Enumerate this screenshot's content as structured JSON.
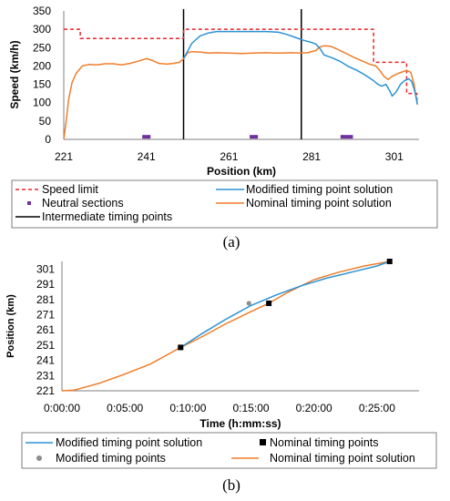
{
  "chart_data": [
    {
      "type": "line",
      "panel_label": "(a)",
      "title": "",
      "xlabel": "Position (km)",
      "ylabel": "Speed (km/h)",
      "xlim": [
        221,
        307
      ],
      "ylim": [
        0,
        350
      ],
      "x_ticks": [
        221,
        241,
        261,
        281,
        301
      ],
      "y_ticks": [
        0,
        50,
        100,
        150,
        200,
        250,
        300,
        350
      ],
      "grid": false,
      "legend": {
        "placement": "bottom",
        "entries": [
          "Speed limit",
          "Modified  timing point solution",
          "Neutral sections",
          "Nominal  timing point solution",
          "Intermediate timing points"
        ]
      },
      "series": [
        {
          "name": "Speed limit",
          "color": "#e8262a",
          "style": "dashed",
          "points": [
            [
              221,
              300
            ],
            [
              225,
              300
            ],
            [
              225,
              275
            ],
            [
              250,
              275
            ],
            [
              250,
              300
            ],
            [
              296,
              300
            ],
            [
              296,
              210
            ],
            [
              304,
              210
            ],
            [
              304,
              125
            ],
            [
              306.5,
              125
            ],
            [
              306.5,
              100
            ]
          ]
        },
        {
          "name": "Nominal  timing point solution",
          "color": "#f07d2a",
          "points": [
            [
              221,
              0
            ],
            [
              221.6,
              50
            ],
            [
              222.2,
              110
            ],
            [
              223,
              155
            ],
            [
              224,
              180
            ],
            [
              225.5,
              200
            ],
            [
              227,
              204
            ],
            [
              229,
              203
            ],
            [
              231,
              206
            ],
            [
              233,
              206
            ],
            [
              235,
              203
            ],
            [
              237,
              207
            ],
            [
              239,
              213
            ],
            [
              241,
              220
            ],
            [
              242.5,
              215
            ],
            [
              244,
              207
            ],
            [
              246,
              205
            ],
            [
              247.5,
              207
            ],
            [
              249,
              210
            ],
            [
              250,
              220
            ],
            [
              251,
              236
            ],
            [
              252,
              239
            ],
            [
              254,
              238
            ],
            [
              256,
              235
            ],
            [
              258,
              236
            ],
            [
              261,
              235
            ],
            [
              264,
              234
            ],
            [
              267,
              235
            ],
            [
              270,
              236
            ],
            [
              272,
              235
            ],
            [
              274,
              235
            ],
            [
              276,
              236
            ],
            [
              278,
              235
            ],
            [
              280,
              236
            ],
            [
              282,
              242
            ],
            [
              283,
              252
            ],
            [
              284,
              255
            ],
            [
              285.5,
              254
            ],
            [
              287,
              247
            ],
            [
              289,
              236
            ],
            [
              291,
              225
            ],
            [
              293,
              215
            ],
            [
              295,
              205
            ],
            [
              296.5,
              200
            ],
            [
              297.5,
              188
            ],
            [
              298.5,
              172
            ],
            [
              299.5,
              163
            ],
            [
              300.5,
              172
            ],
            [
              302,
              180
            ],
            [
              304,
              188
            ],
            [
              305,
              183
            ],
            [
              305.8,
              150
            ],
            [
              306.2,
              120
            ],
            [
              306.6,
              95
            ]
          ]
        },
        {
          "name": "Modified  timing point solution",
          "color": "#2a93d5",
          "points": [
            [
              250,
              220
            ],
            [
              251,
              240
            ],
            [
              252,
              262
            ],
            [
              254,
              282
            ],
            [
              256,
              290
            ],
            [
              258,
              294
            ],
            [
              262,
              294
            ],
            [
              266,
              294
            ],
            [
              270,
              294
            ],
            [
              273,
              292
            ],
            [
              275,
              286
            ],
            [
              277,
              278
            ],
            [
              279,
              270
            ],
            [
              281,
              264
            ],
            [
              282,
              260
            ],
            [
              283,
              248
            ],
            [
              284,
              230
            ],
            [
              286,
              222
            ],
            [
              288,
              212
            ],
            [
              290,
              198
            ],
            [
              292,
              188
            ],
            [
              294,
              175
            ],
            [
              296,
              160
            ],
            [
              297,
              150
            ],
            [
              298,
              145
            ],
            [
              299,
              150
            ],
            [
              300,
              130
            ],
            [
              300.5,
              118
            ],
            [
              301.5,
              130
            ],
            [
              302.5,
              150
            ],
            [
              303.5,
              160
            ],
            [
              304.5,
              165
            ],
            [
              305.2,
              158
            ],
            [
              305.8,
              138
            ],
            [
              306.3,
              115
            ],
            [
              306.6,
              95
            ]
          ]
        }
      ],
      "neutral_sections": [
        {
          "x_start": 240,
          "x_end": 242,
          "y": 7
        },
        {
          "x_start": 266,
          "x_end": 268,
          "y": 7
        },
        {
          "x_start": 288,
          "x_end": 291,
          "y": 7
        }
      ],
      "intermediate_timing_points": [
        250,
        278.5
      ]
    },
    {
      "type": "line",
      "panel_label": "(b)",
      "title": "",
      "xlabel": "Time (h:mm:ss)",
      "ylabel": "Position (km)",
      "xlim": [
        "0:00:00",
        "0:28:20"
      ],
      "ylim": [
        221,
        306
      ],
      "x_ticks": [
        "0:00:00",
        "0:05:00",
        "0:10:00",
        "0:15:00",
        "0:20:00",
        "0:25:00"
      ],
      "y_ticks": [
        221,
        231,
        241,
        251,
        261,
        271,
        281,
        291,
        301
      ],
      "grid": false,
      "legend": {
        "placement": "bottom",
        "entries": [
          "Modified timing point solution",
          "Nominal timing points",
          "Modified timing points",
          "Nominal timing point solution"
        ]
      },
      "series": [
        {
          "name": "Nominal timing point solution",
          "color": "#f07d2a",
          "points": [
            [
              "0:00:00",
              221
            ],
            [
              "0:01:00",
              221.5
            ],
            [
              "0:03:00",
              226
            ],
            [
              "0:05:00",
              232
            ],
            [
              "0:07:00",
              238.5
            ],
            [
              "0:09:25",
              249.5
            ],
            [
              "0:11:00",
              256
            ],
            [
              "0:13:00",
              265
            ],
            [
              "0:15:00",
              273
            ],
            [
              "0:16:25",
              278.5
            ],
            [
              "0:18:00",
              286
            ],
            [
              "0:20:00",
              294
            ],
            [
              "0:22:00",
              299
            ],
            [
              "0:24:00",
              303
            ],
            [
              "0:26:00",
              306
            ]
          ]
        },
        {
          "name": "Modified timing point solution",
          "color": "#2a93d5",
          "points": [
            [
              "0:09:25",
              249.5
            ],
            [
              "0:11:00",
              258
            ],
            [
              "0:13:00",
              268
            ],
            [
              "0:15:00",
              277
            ],
            [
              "0:17:00",
              284
            ],
            [
              "0:19:00",
              290
            ],
            [
              "0:21:00",
              295
            ],
            [
              "0:23:00",
              299
            ],
            [
              "0:25:00",
              303
            ],
            [
              "0:26:00",
              306
            ]
          ]
        }
      ],
      "nominal_timing_points": [
        [
          "0:09:25",
          249.5
        ],
        [
          "0:16:25",
          278.5
        ],
        [
          "0:26:00",
          306
        ]
      ],
      "modified_timing_points": [
        [
          "0:09:25",
          249.5
        ],
        [
          "0:14:50",
          278.5
        ],
        [
          "0:26:00",
          306
        ]
      ]
    }
  ]
}
